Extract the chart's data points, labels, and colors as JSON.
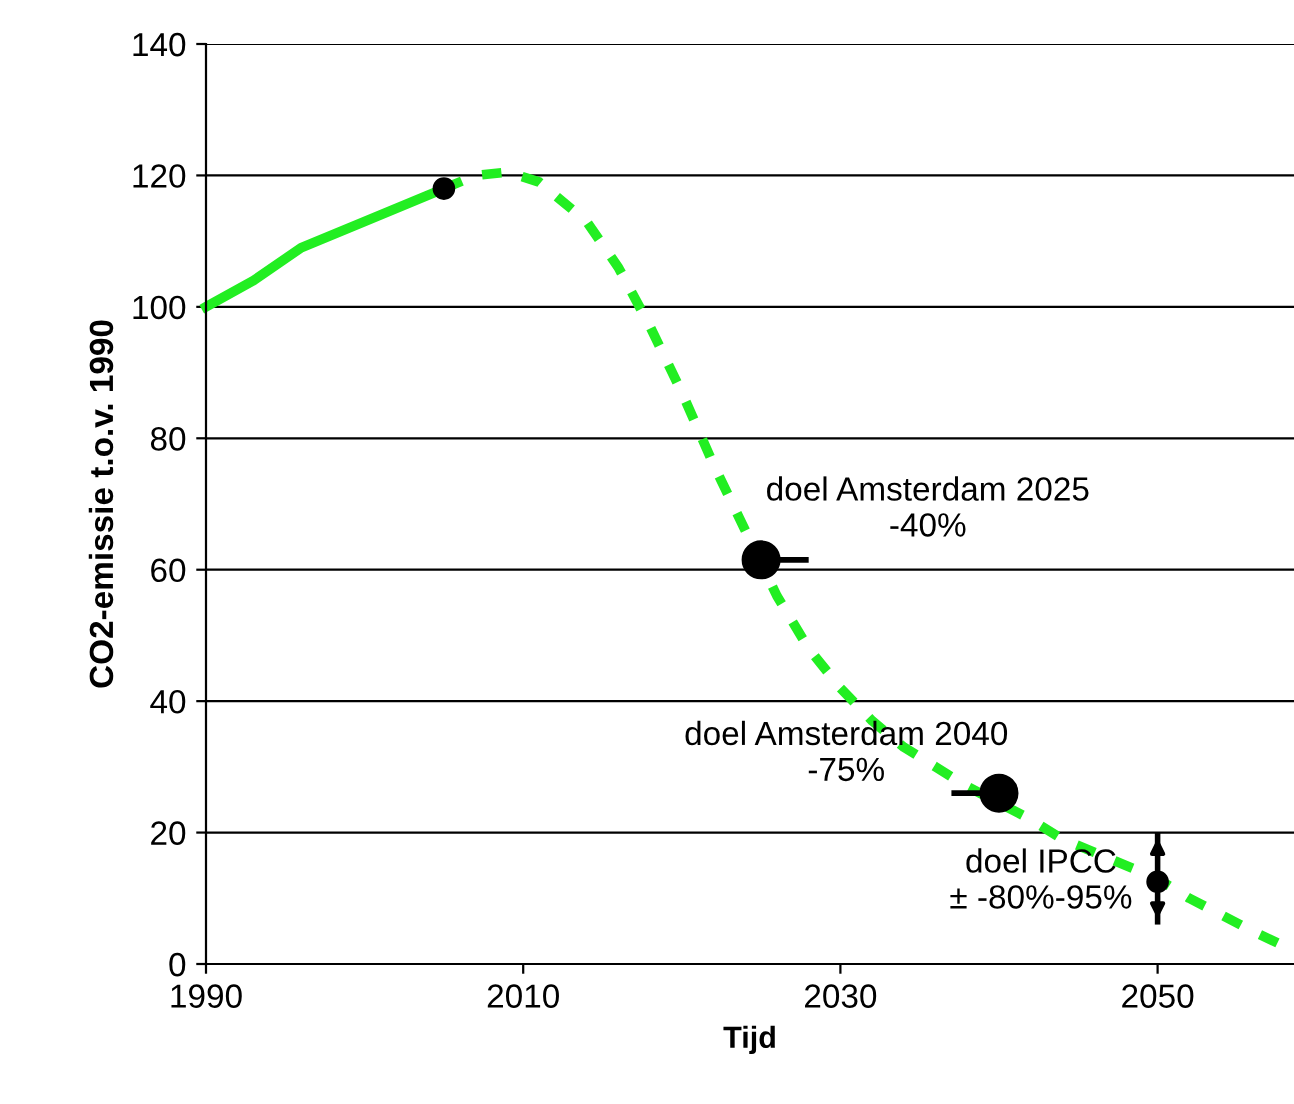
{
  "chart_data": {
    "type": "line",
    "xlabel": "Tijd",
    "ylabel": "CO2-emissie t.o.v. 1990",
    "xlim": [
      1990,
      2058.6
    ],
    "xticks": [
      1990,
      2010,
      2030,
      2050
    ],
    "ylim": [
      0,
      140
    ],
    "yticks": [
      0,
      20,
      40,
      60,
      80,
      100,
      120,
      140
    ],
    "grid": "y",
    "legend": false,
    "series": [
      {
        "color": "#22ee22",
        "line_style": "solid",
        "x": [
          1990,
          1993,
          1996,
          2000,
          2005
        ],
        "values": [
          100,
          104,
          109,
          113,
          118
        ]
      },
      {
        "color": "#22ee22",
        "line_style": "dashed",
        "x": [
          2005,
          2007,
          2009,
          2011,
          2014,
          2016,
          2018,
          2020,
          2022,
          2024,
          2026,
          2028,
          2030,
          2032,
          2034,
          2036,
          2038,
          2042,
          2044,
          2046,
          2048,
          2050,
          2052,
          2054,
          2056,
          2058.6
        ],
        "values": [
          118,
          120,
          120.5,
          119,
          113,
          106,
          97,
          87,
          76,
          66,
          56,
          48,
          42,
          37,
          33,
          30,
          27,
          22,
          19,
          17,
          15,
          13,
          10,
          7.5,
          5,
          2
        ]
      },
      {
        "type": "bubble",
        "color": "#000000",
        "x": [
          2005,
          2025,
          2040,
          2050
        ],
        "values": [
          118,
          61.5,
          26,
          12.5
        ],
        "sizes": [
          0.3,
          1,
          1,
          0.3
        ],
        "xerrors": [
          null,
          [
            2025,
            2028
          ],
          [
            2037,
            2040
          ],
          null
        ],
        "errors": [
          null,
          null,
          null,
          [
            6,
            20
          ]
        ]
      }
    ],
    "annotations": [
      {
        "text": "doel Amsterdam 2025\n-40%",
        "x": 2025,
        "y": 61.5
      },
      {
        "text": "doel Amsterdam 2040\n-75%",
        "x": 2040,
        "y": 26
      },
      {
        "text": "doel IPCC\n± -80%-95%",
        "x": 2050,
        "y": 12.5
      }
    ]
  }
}
